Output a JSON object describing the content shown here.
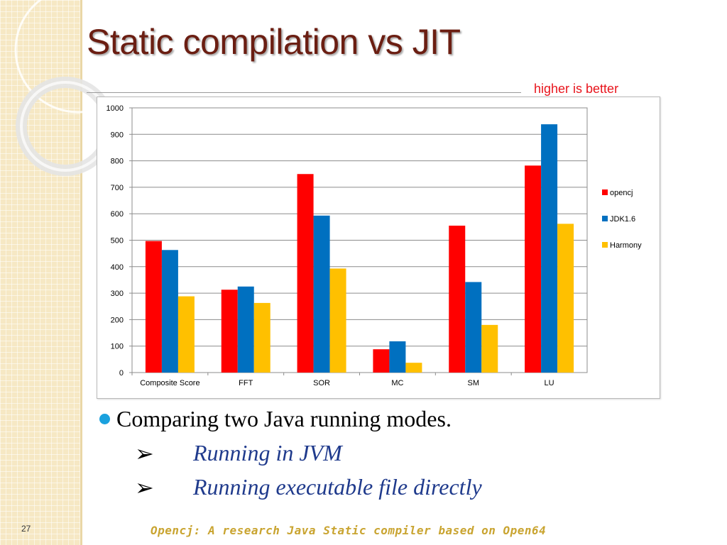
{
  "slide": {
    "title": "Static compilation vs JIT",
    "note": "higher is better",
    "bullet": "Comparing two Java running modes.",
    "subbullets": [
      {
        "arrow": "➢",
        "text": "Running in JVM"
      },
      {
        "arrow": "➢",
        "text": "Running executable file directly"
      }
    ],
    "slide_number": "27",
    "footer": "Opencj: A research Java Static compiler based on Open64"
  },
  "colors": {
    "title": "#6b1e12",
    "note": "#e8141c",
    "bullet_dot": "#1aa1de",
    "subbullet_text": "#1f3a8c",
    "footer": "#c9a430"
  },
  "chart_data": {
    "type": "bar",
    "categories": [
      "Composite Score",
      "FFT",
      "SOR",
      "MC",
      "SM",
      "LU"
    ],
    "series": [
      {
        "name": "opencj",
        "color": "#ff0000",
        "values": [
          497,
          313,
          750,
          88,
          555,
          782
        ]
      },
      {
        "name": "JDK1.6",
        "color": "#0070c0",
        "values": [
          463,
          325,
          593,
          118,
          342,
          938
        ]
      },
      {
        "name": "Harmony",
        "color": "#ffc000",
        "values": [
          288,
          263,
          393,
          37,
          180,
          562
        ]
      }
    ],
    "ylim": [
      0,
      1000
    ],
    "yticks": [
      "0",
      "100",
      "200",
      "300",
      "400",
      "500",
      "600",
      "700",
      "800",
      "900",
      "1000"
    ],
    "grid": true,
    "legend_position": "right"
  }
}
